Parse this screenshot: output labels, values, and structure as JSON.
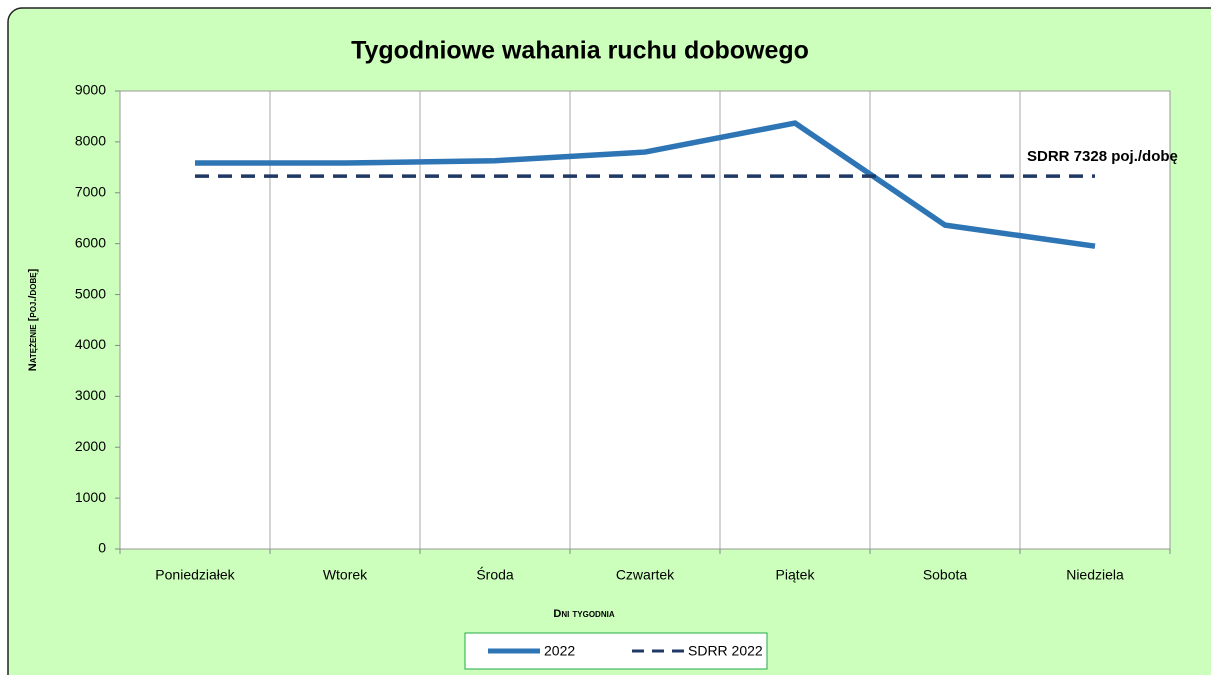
{
  "chart_data": {
    "type": "line",
    "title": "Tygodniowe wahania ruchu dobowego",
    "x_label": "Dni tygodnia",
    "y_label": "Natężenie [poj./dobę]",
    "annotation": "SDRR 7328  poj./dobę",
    "categories": [
      "Poniedziałek",
      "Wtorek",
      "Środa",
      "Czwartek",
      "Piątek",
      "Sobota",
      "Niedziela"
    ],
    "series": [
      {
        "name": "2022",
        "color": "#2e75b6",
        "dashed": false,
        "values": [
          7585,
          7585,
          7630,
          7800,
          8370,
          6365,
          5950
        ]
      },
      {
        "name": "SDRR 2022",
        "color": "#1f3864",
        "dashed": true,
        "values": [
          7328,
          7328,
          7328,
          7328,
          7328,
          7328,
          7328
        ]
      }
    ],
    "ylim": [
      0,
      9000
    ],
    "yticks": [
      0,
      1000,
      2000,
      3000,
      4000,
      5000,
      6000,
      7000,
      8000,
      9000
    ],
    "grid": true,
    "legend": "bottom"
  }
}
